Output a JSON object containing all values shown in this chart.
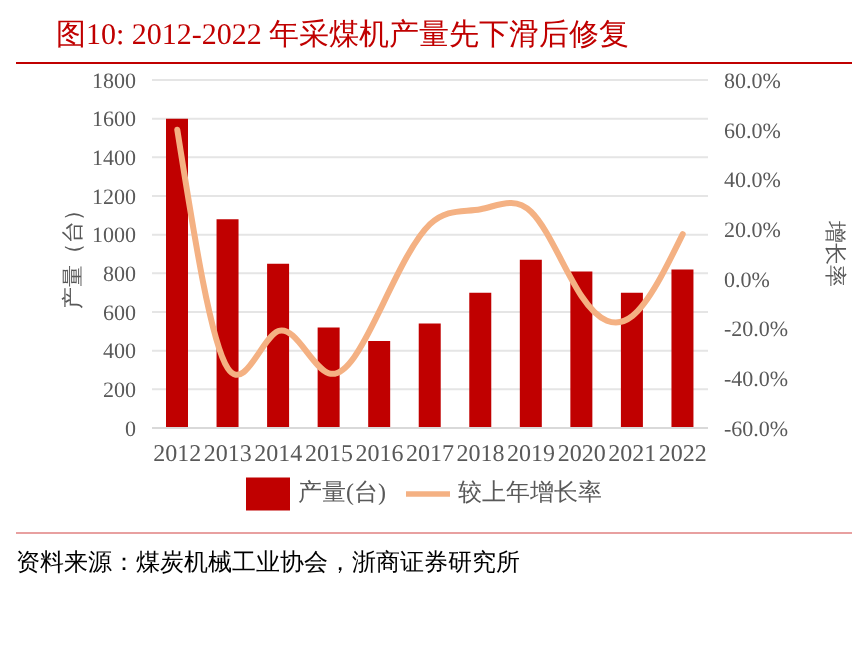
{
  "chart_data": {
    "type": "bar",
    "title": "图10:   2012-2022 年采煤机产量先下滑后修复",
    "categories": [
      "2012",
      "2013",
      "2014",
      "2015",
      "2016",
      "2017",
      "2018",
      "2019",
      "2020",
      "2021",
      "2022"
    ],
    "series": [
      {
        "name": "产量(台)",
        "color": "#c00000",
        "values": [
          1600,
          1080,
          850,
          520,
          450,
          540,
          700,
          870,
          810,
          700,
          820
        ]
      },
      {
        "name": "较上年增长率",
        "type": "line",
        "axis": "y2",
        "color": "#f4b183",
        "values": [
          60,
          -36,
          -21,
          -38,
          -13,
          22,
          28,
          27,
          -7,
          -15,
          18
        ]
      }
    ],
    "ylabel": "产量（台）",
    "y2label": "增长率",
    "ylim": [
      0,
      1800
    ],
    "yticks": [
      0,
      200,
      400,
      600,
      800,
      1000,
      1200,
      1400,
      1600,
      1800
    ],
    "y2lim": [
      -60,
      80
    ],
    "y2ticks": [
      {
        "value": -60,
        "label": "-60.0%"
      },
      {
        "value": -40,
        "label": "-40.0%"
      },
      {
        "value": -20,
        "label": "-20.0%"
      },
      {
        "value": 0,
        "label": "0.0%"
      },
      {
        "value": 20,
        "label": "20.0%"
      },
      {
        "value": 40,
        "label": "40.0%"
      },
      {
        "value": 60,
        "label": "60.0%"
      },
      {
        "value": 80,
        "label": "80.0%"
      }
    ],
    "grid": "y",
    "legend": "bottom",
    "marker": "none",
    "annotations": [
      "资料来源：煤炭机械工业协会，浙商证券研究所"
    ]
  }
}
